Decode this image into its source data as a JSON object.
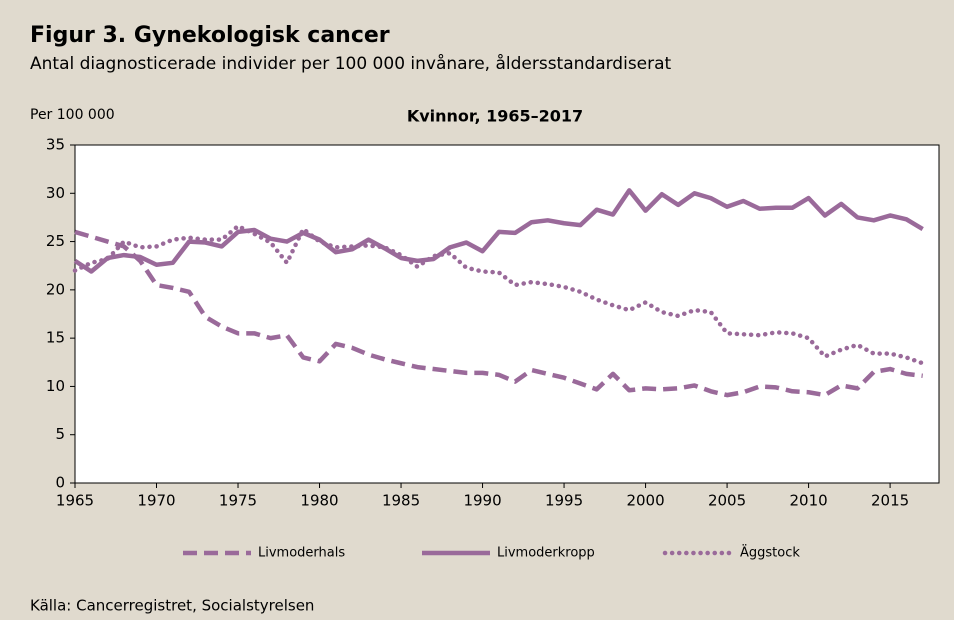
{
  "chart_data": {
    "type": "line",
    "title": "Figur 3. Gynekologisk cancer",
    "subtitle": "Antal diagnosticerade individer per 100 000 invånare, åldersstandardiserat",
    "ylabel": "Per 100 000",
    "chart_title": "Kvinnor, 1965–2017",
    "source": "Källa: Cancerregistret, Socialstyrelsen",
    "x": [
      1965,
      1966,
      1967,
      1968,
      1969,
      1970,
      1971,
      1972,
      1973,
      1974,
      1975,
      1976,
      1977,
      1978,
      1979,
      1980,
      1981,
      1982,
      1983,
      1984,
      1985,
      1986,
      1987,
      1988,
      1989,
      1990,
      1991,
      1992,
      1993,
      1994,
      1995,
      1996,
      1997,
      1998,
      1999,
      2000,
      2001,
      2002,
      2003,
      2004,
      2005,
      2006,
      2007,
      2008,
      2009,
      2010,
      2011,
      2012,
      2013,
      2014,
      2015,
      2016,
      2017
    ],
    "series": [
      {
        "name": "Livmoderhals",
        "color": "#9a6a9a",
        "style": "dashed",
        "values": [
          26,
          25.5,
          25,
          24.5,
          23,
          20.5,
          20.2,
          19.8,
          17.2,
          16.2,
          15.5,
          15.5,
          15,
          15.3,
          13,
          12.6,
          14.4,
          14,
          13.3,
          12.8,
          12.4,
          12,
          11.8,
          11.6,
          11.4,
          11.4,
          11.2,
          10.5,
          11.7,
          11.3,
          10.9,
          10.3,
          9.7,
          11.3,
          9.6,
          9.8,
          9.7,
          9.8,
          10.1,
          9.5,
          9.1,
          9.4,
          10,
          9.9,
          9.5,
          9.4,
          9.1,
          10.1,
          9.8,
          11.5,
          11.8,
          11.3,
          11.1
        ]
      },
      {
        "name": "Livmoderkropp",
        "color": "#9a6a9a",
        "style": "solid",
        "values": [
          23,
          21.9,
          23.3,
          23.6,
          23.4,
          22.6,
          22.8,
          25,
          24.9,
          24.5,
          26,
          26.2,
          25.3,
          25,
          25.9,
          25.2,
          23.9,
          24.2,
          25.2,
          24.3,
          23.3,
          23,
          23.2,
          24.4,
          24.9,
          24,
          26,
          25.9,
          27,
          27.2,
          26.9,
          26.7,
          28.3,
          27.8,
          30.3,
          28.2,
          29.9,
          28.8,
          30,
          29.5,
          28.6,
          29.2,
          28.4,
          28.5,
          28.5,
          29.5,
          27.7,
          28.9,
          27.5,
          27.2,
          27.7,
          27.3,
          26.3
        ]
      },
      {
        "name": "Äggstock",
        "color": "#9a6a9a",
        "style": "dotted",
        "values": [
          22,
          22.8,
          23.2,
          25,
          24.4,
          24.5,
          25.2,
          25.4,
          25.2,
          25.2,
          26.6,
          25.8,
          24.9,
          22.8,
          26.3,
          25,
          24.4,
          24.5,
          24.6,
          24.4,
          23.6,
          22.4,
          23.5,
          23.8,
          22.3,
          21.9,
          21.8,
          20.5,
          20.8,
          20.6,
          20.3,
          19.8,
          19,
          18.4,
          17.9,
          18.7,
          17.7,
          17.3,
          17.9,
          17.7,
          15.5,
          15.4,
          15.3,
          15.6,
          15.5,
          15,
          13.1,
          13.8,
          14.3,
          13.4,
          13.4,
          13,
          12.4
        ]
      }
    ],
    "xlim": [
      1965,
      2018
    ],
    "xticks": [
      1965,
      1970,
      1975,
      1980,
      1985,
      1990,
      1995,
      2000,
      2005,
      2010,
      2015
    ],
    "ylim": [
      0,
      35
    ],
    "yticks": [
      0,
      5,
      10,
      15,
      20,
      25,
      30,
      35
    ],
    "grid": true,
    "legend": "bottom"
  }
}
